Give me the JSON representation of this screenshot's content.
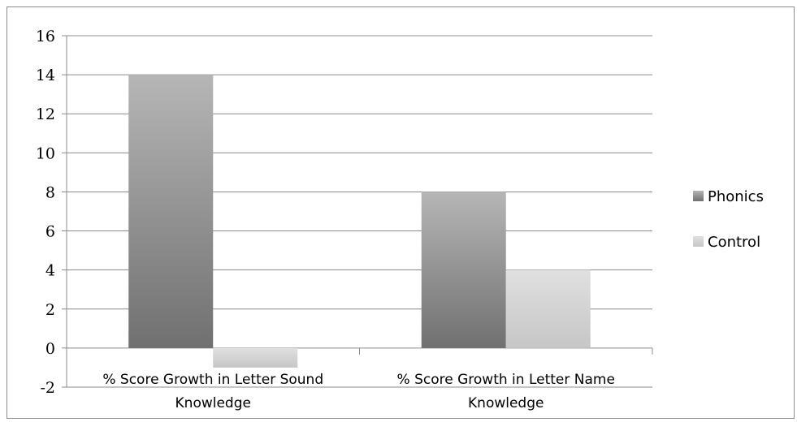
{
  "chart_data": {
    "type": "bar",
    "title": "",
    "xlabel": "",
    "ylabel": "",
    "ylim": [
      -2,
      16
    ],
    "yticks": [
      -2,
      0,
      2,
      4,
      6,
      8,
      10,
      12,
      14,
      16
    ],
    "grid": true,
    "legend_position": "right",
    "categories": [
      [
        "% Score Growth in Letter Sound",
        "Knowledge"
      ],
      [
        "% Score Growth in Letter Name",
        "Knowledge"
      ]
    ],
    "series": [
      {
        "name": "Phonics",
        "values": [
          14,
          8
        ],
        "color": "#8a8a8a"
      },
      {
        "name": "Control",
        "values": [
          -1,
          4
        ],
        "color": "#d4d4d4"
      }
    ]
  }
}
